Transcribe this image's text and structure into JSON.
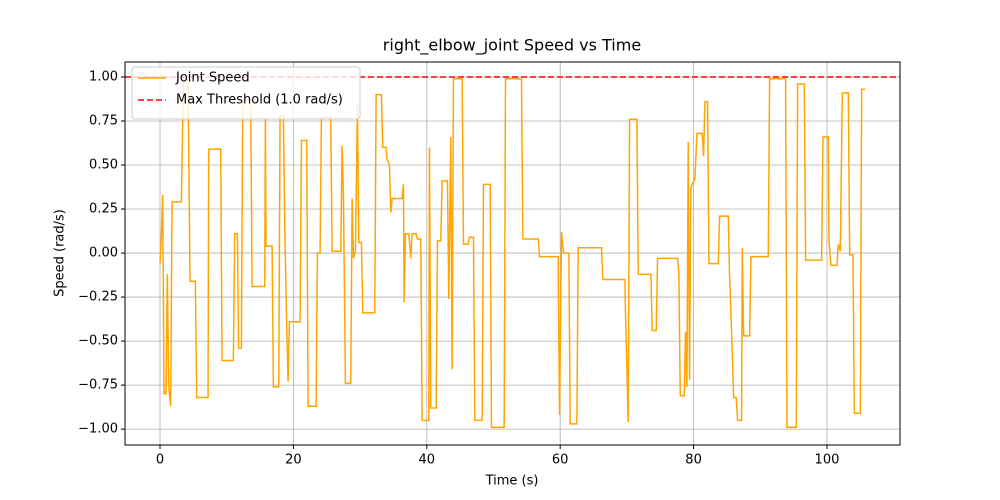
{
  "chart_data": {
    "type": "line",
    "title": "right_elbow_joint Speed vs Time",
    "x_label": "Time (s)",
    "y_label": "Speed (rad/s)",
    "xlim": [
      -5.25,
      110.95
    ],
    "ylim": [
      -1.09,
      1.085
    ],
    "xticks": [
      0,
      20,
      40,
      60,
      80,
      100
    ],
    "yticks": [
      {
        "value": -1,
        "label": "−1.00"
      },
      {
        "value": -0.75,
        "label": "−0.75"
      },
      {
        "value": -0.5,
        "label": "−0.50"
      },
      {
        "value": -0.25,
        "label": "−0.25"
      },
      {
        "value": 0,
        "label": "0.00"
      },
      {
        "value": 0.25,
        "label": "0.25"
      },
      {
        "value": 0.5,
        "label": "0.50"
      },
      {
        "value": 0.75,
        "label": "0.75"
      },
      {
        "value": 1,
        "label": "1.00"
      }
    ],
    "grid": true,
    "legend": "upper left",
    "x": [
      0,
      0.2,
      0.4,
      0.6,
      0.9,
      1.1,
      1.3,
      1.6,
      1.8,
      3.2,
      3.5,
      4.2,
      4.5,
      5.3,
      5.5,
      7.2,
      7.3,
      9.1,
      9.3,
      11.0,
      11.2,
      11.6,
      11.8,
      12.2,
      12.4,
      13.6,
      13.8,
      15.7,
      15.8,
      15.9,
      16.8,
      17.0,
      17.8,
      18.0,
      18.5,
      18.7,
      19.0,
      19.2,
      19.4,
      21.0,
      21.2,
      22.0,
      22.2,
      23.4,
      23.6,
      24.0,
      24.2,
      25.6,
      25.8,
      27.1,
      27.3,
      27.5,
      27.8,
      28.6,
      28.8,
      29.0,
      29.3,
      29.6,
      29.8,
      30.2,
      30.4,
      32.2,
      32.4,
      33.2,
      33.4,
      33.9,
      34.0,
      34.4,
      34.6,
      34.8,
      36.3,
      36.5,
      36.6,
      36.8,
      37.3,
      37.6,
      37.8,
      38.4,
      38.6,
      39.1,
      39.3,
      40.3,
      40.4,
      40.6,
      41.4,
      41.6,
      42.1,
      42.3,
      43.1,
      43.3,
      43.6,
      43.8,
      44.0,
      45.3,
      45.5,
      46.2,
      46.4,
      47.0,
      47.2,
      48.3,
      48.5,
      49.5,
      49.7,
      51.6,
      51.8,
      54.2,
      54.4,
      56.7,
      56.9,
      59.7,
      59.9,
      60.2,
      60.5,
      61.3,
      61.5,
      62.5,
      62.7,
      66.2,
      66.4,
      69.7,
      69.8,
      70.2,
      70.4,
      71.5,
      71.7,
      73.6,
      73.8,
      74.4,
      74.6,
      77.6,
      77.8,
      78.0,
      78.6,
      78.8,
      79.0,
      79.2,
      79.4,
      79.6,
      79.9,
      80.2,
      80.5,
      81.3,
      81.5,
      81.7,
      82.1,
      82.3,
      83.7,
      83.9,
      85.2,
      85.4,
      85.8,
      86.0,
      86.4,
      86.6,
      87.2,
      87.3,
      87.5,
      88.4,
      88.6,
      91.2,
      91.4,
      93.8,
      94.0,
      95.4,
      95.6,
      96.6,
      96.8,
      99.2,
      99.4,
      100.2,
      100.3,
      100.6,
      101.5,
      101.7,
      102.0,
      102.3,
      103.2,
      103.4,
      103.9,
      104.1,
      105.0,
      105.2,
      105.7
    ],
    "series": [
      {
        "name": "Joint Speed",
        "color": "#ffa500",
        "values": [
          -0.06,
          0.1,
          0.33,
          -0.8,
          -0.8,
          -0.12,
          -0.75,
          -0.87,
          0.29,
          0.29,
          0.97,
          0.97,
          -0.16,
          -0.16,
          -0.82,
          -0.82,
          0.59,
          0.59,
          -0.61,
          -0.61,
          0.11,
          0.11,
          -0.54,
          -0.54,
          0.87,
          0.87,
          -0.19,
          -0.19,
          0.76,
          0.04,
          0.04,
          -0.76,
          -0.76,
          0.78,
          0.78,
          0.15,
          -0.42,
          -0.73,
          -0.39,
          -0.39,
          0.64,
          0.64,
          -0.87,
          -0.87,
          0.0,
          0.0,
          0.77,
          0.77,
          0.01,
          0.01,
          0.61,
          0.33,
          -0.74,
          -0.74,
          0.31,
          -0.03,
          0.01,
          0.84,
          0.06,
          0.06,
          -0.34,
          -0.34,
          0.9,
          0.9,
          0.6,
          0.6,
          0.54,
          0.5,
          0.23,
          0.31,
          0.31,
          0.39,
          -0.28,
          0.11,
          0.11,
          -0.03,
          0.11,
          0.11,
          0.08,
          0.08,
          -0.95,
          -0.95,
          0.6,
          -0.88,
          -0.88,
          0.07,
          0.07,
          0.41,
          0.41,
          -0.26,
          0.66,
          -0.66,
          0.99,
          0.99,
          0.05,
          0.05,
          0.09,
          0.09,
          -0.95,
          -0.95,
          0.39,
          0.39,
          -0.99,
          -0.99,
          0.99,
          0.99,
          0.08,
          0.08,
          -0.02,
          -0.02,
          -0.92,
          0.12,
          0.0,
          0.0,
          -0.97,
          -0.97,
          0.03,
          0.03,
          -0.15,
          -0.15,
          -0.36,
          -0.96,
          0.76,
          0.76,
          -0.12,
          -0.12,
          -0.44,
          -0.44,
          -0.03,
          -0.03,
          -0.12,
          -0.81,
          -0.81,
          -0.45,
          -0.76,
          0.63,
          -0.72,
          0.37,
          0.4,
          0.42,
          0.68,
          0.68,
          0.55,
          0.86,
          0.86,
          -0.06,
          -0.06,
          0.21,
          0.21,
          -0.13,
          -0.56,
          -0.82,
          -0.82,
          -0.95,
          -0.95,
          0.03,
          -0.47,
          -0.47,
          -0.02,
          -0.02,
          0.99,
          0.99,
          -0.99,
          -0.99,
          0.96,
          0.96,
          -0.04,
          -0.04,
          0.66,
          0.66,
          0.07,
          -0.07,
          -0.07,
          0.05,
          0.01,
          0.91,
          0.91,
          -0.01,
          -0.01,
          -0.91,
          -0.91,
          0.93,
          0.93
        ]
      }
    ],
    "hlines": [
      {
        "name": "Max Threshold (1.0 rad/s)",
        "color": "#ff0000",
        "y": 1.0
      }
    ]
  }
}
